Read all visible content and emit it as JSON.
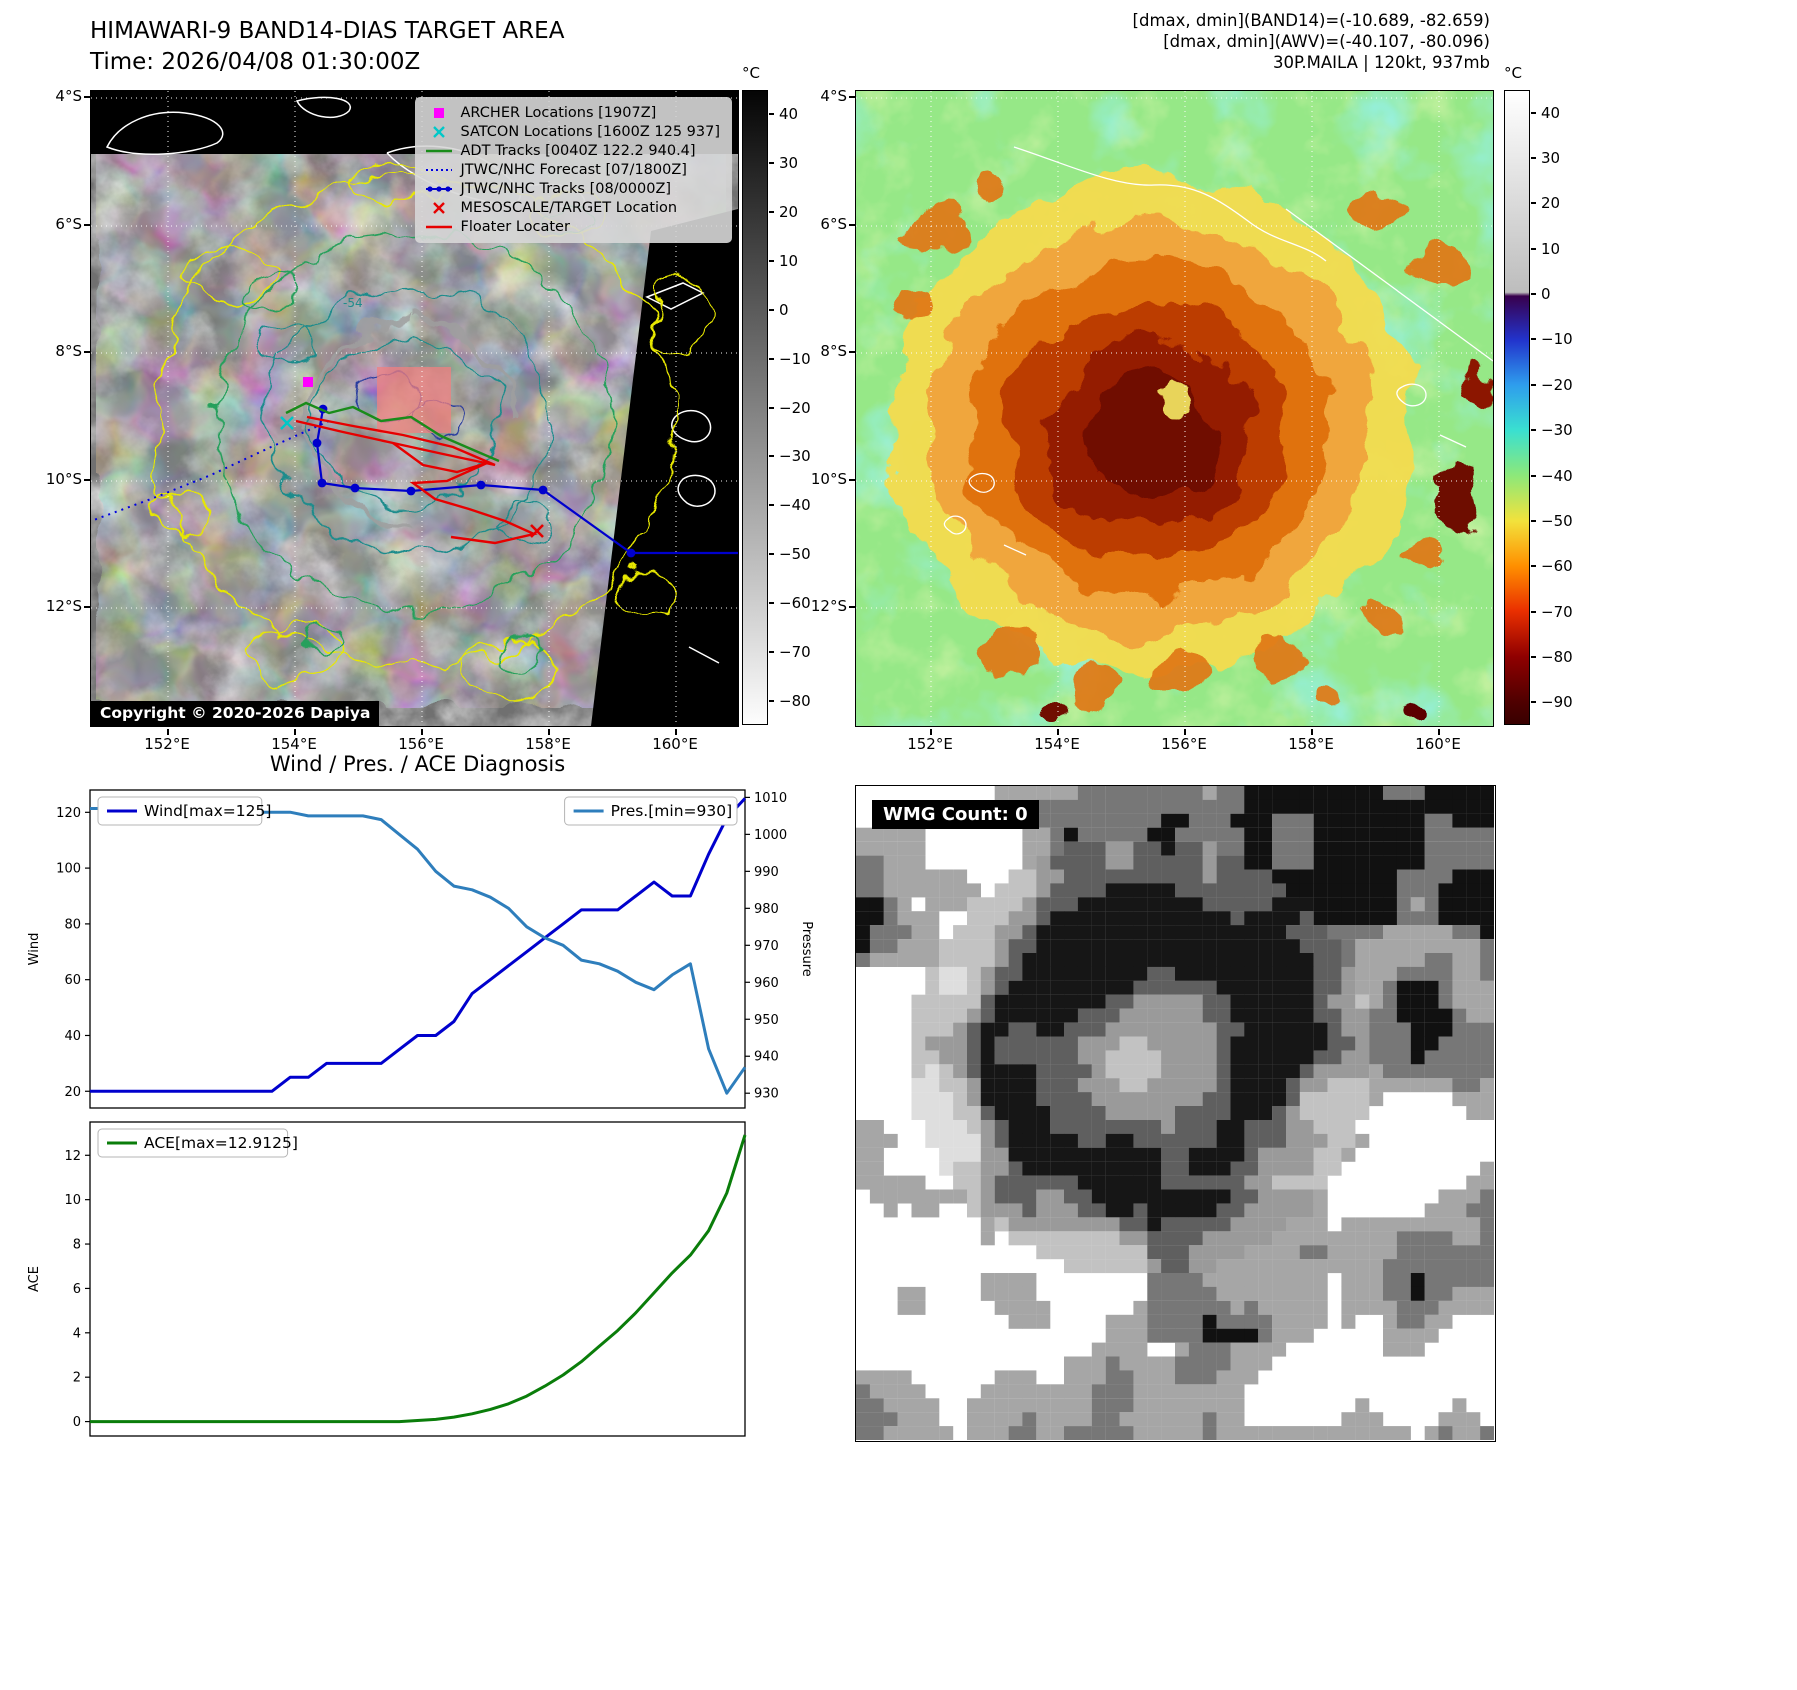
{
  "left_map": {
    "title_line1": "HIMAWARI-9 BAND14-DIAS TARGET AREA",
    "title_line2": "Time: 2026/04/08 01:30:00Z",
    "copyright": "Copyright © 2020-2026 Dapiya",
    "contour_label": "-54",
    "lat_ticks": [
      "4°S",
      "6°S",
      "8°S",
      "10°S",
      "12°S"
    ],
    "lon_ticks": [
      "152°E",
      "154°E",
      "156°E",
      "158°E",
      "160°E"
    ],
    "legend": [
      {
        "label": "ARCHER Locations [1907Z]",
        "marker": "magenta-square"
      },
      {
        "label": "SATCON Locations [1600Z 125 937]",
        "marker": "cyan-x"
      },
      {
        "label": "ADT Tracks [0040Z 122.2 940.4]",
        "marker": "green-line"
      },
      {
        "label": "JTWC/NHC Forecast [07/1800Z]",
        "marker": "blue-dotted-line"
      },
      {
        "label": "JTWC/NHC Tracks [08/0000Z]",
        "marker": "blue-line-dots"
      },
      {
        "label": "MESOSCALE/TARGET Location",
        "marker": "red-x"
      },
      {
        "label": "Floater Locater",
        "marker": "red-line"
      }
    ],
    "colorbar": {
      "unit": "°C",
      "ticks": [
        40,
        30,
        20,
        10,
        0,
        -10,
        -20,
        -30,
        -40,
        -50,
        -60,
        -70,
        -80
      ],
      "vmax": 45,
      "vmin": -85
    }
  },
  "right_map": {
    "header_lines": [
      "[dmax, dmin](BAND14)=(-10.689, -82.659)",
      "[dmax, dmin](AWV)=(-40.107, -80.096)",
      "30P.MAILA | 120kt, 937mb"
    ],
    "lat_ticks": [
      "4°S",
      "6°S",
      "8°S",
      "10°S",
      "12°S"
    ],
    "lon_ticks": [
      "152°E",
      "154°E",
      "156°E",
      "158°E",
      "160°E"
    ],
    "colorbar": {
      "unit": "°C",
      "ticks": [
        40,
        30,
        20,
        10,
        0,
        -10,
        -20,
        -30,
        -40,
        -50,
        -60,
        -70,
        -80,
        -90
      ],
      "vmax": 45,
      "vmin": -95
    }
  },
  "wmg": {
    "label": "WMG Count: 0"
  },
  "chart_data": [
    {
      "type": "line",
      "title": "Wind / Pres. / ACE Diagnosis",
      "ylabel_left": "Wind",
      "ylabel_right": "Pressure",
      "yticks_left": [
        20,
        40,
        60,
        80,
        100,
        120
      ],
      "yticks_right": [
        930,
        940,
        950,
        960,
        970,
        980,
        990,
        1000,
        1010
      ],
      "ylim_left": [
        14,
        128
      ],
      "ylim_right": [
        926,
        1012
      ],
      "series": [
        {
          "name": "Wind[max=125]",
          "axis": "left",
          "color": "#0000cd",
          "values": [
            20,
            20,
            20,
            20,
            20,
            20,
            20,
            20,
            20,
            20,
            20,
            25,
            25,
            30,
            30,
            30,
            30,
            35,
            40,
            40,
            45,
            55,
            60,
            65,
            70,
            75,
            80,
            85,
            85,
            85,
            90,
            95,
            90,
            90,
            105,
            118,
            125
          ]
        },
        {
          "name": "Pres.[min=930]",
          "axis": "right",
          "color": "#2e7ebc",
          "values": [
            1007,
            1007,
            1007,
            1007,
            1007,
            1007,
            1007,
            1007,
            1007,
            1006,
            1006,
            1006,
            1005,
            1005,
            1005,
            1005,
            1004,
            1000,
            996,
            990,
            986,
            985,
            983,
            980,
            975,
            972,
            970,
            966,
            965,
            963,
            960,
            958,
            962,
            965,
            942,
            930,
            937
          ]
        }
      ]
    },
    {
      "type": "line",
      "title": "",
      "ylabel_left": "ACE",
      "yticks_left": [
        0,
        2,
        4,
        6,
        8,
        10,
        12
      ],
      "ylim_left": [
        -0.65,
        13.5
      ],
      "series": [
        {
          "name": "ACE[max=12.9125]",
          "axis": "left",
          "color": "#0a7d0a",
          "values": [
            0,
            0,
            0,
            0,
            0,
            0,
            0,
            0,
            0,
            0,
            0,
            0,
            0,
            0,
            0,
            0,
            0,
            0,
            0.05,
            0.1,
            0.2,
            0.35,
            0.55,
            0.8,
            1.15,
            1.6,
            2.1,
            2.7,
            3.4,
            4.1,
            4.9,
            5.8,
            6.7,
            7.5,
            8.6,
            10.3,
            12.9125
          ]
        }
      ]
    }
  ]
}
